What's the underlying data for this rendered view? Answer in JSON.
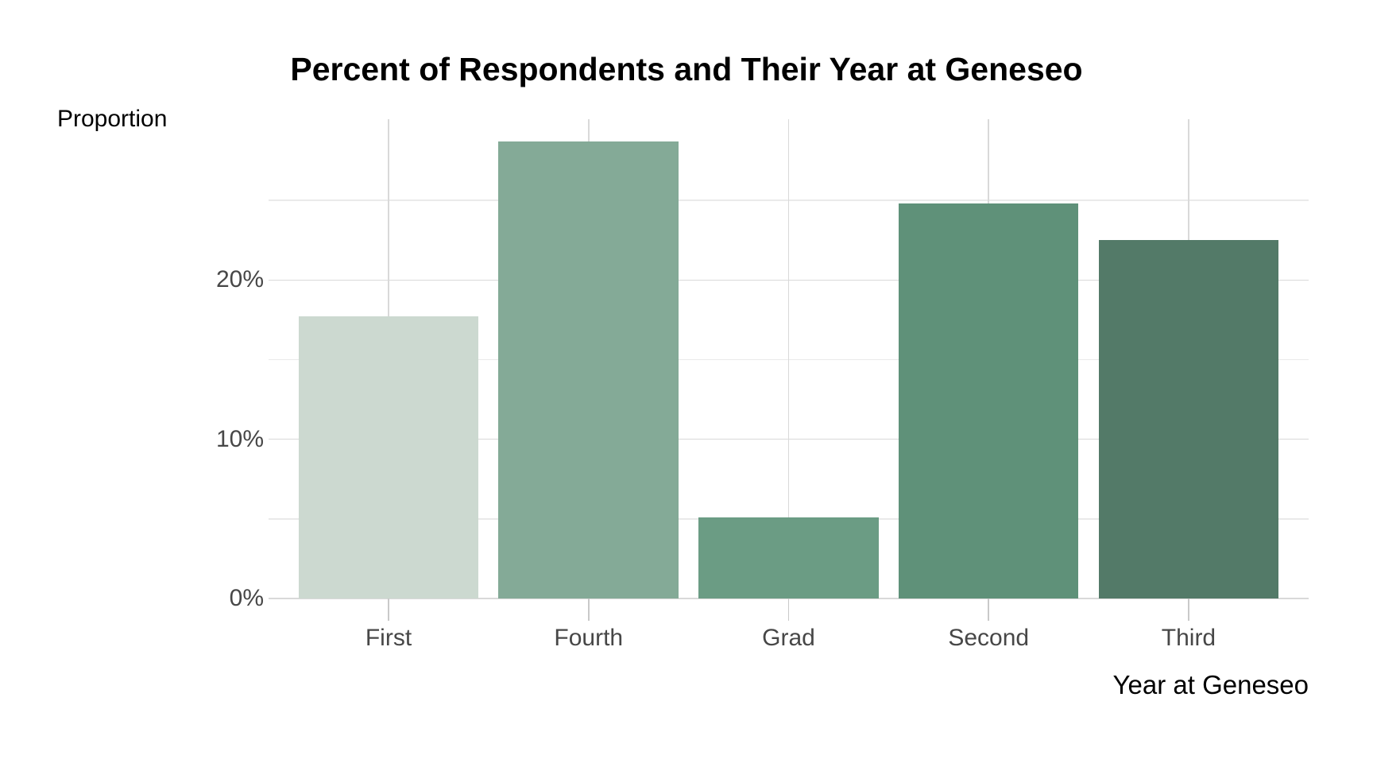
{
  "chart_data": {
    "type": "bar",
    "title": "Percent of Respondents and Their Year at Geneseo",
    "xlabel": "Year at Geneseo",
    "ylabel": "Proportion",
    "categories": [
      "First",
      "Fourth",
      "Grad",
      "Second",
      "Third"
    ],
    "values": [
      17.7,
      28.7,
      5.1,
      24.8,
      22.5
    ],
    "value_unit": "percent",
    "bar_colors": [
      "#ccd9d0",
      "#84aa97",
      "#6b9c84",
      "#5f9179",
      "#537a68"
    ],
    "y_axis": {
      "ticks": [
        {
          "value": 0,
          "label": "0%"
        },
        {
          "value": 10,
          "label": "10%"
        },
        {
          "value": 20,
          "label": "20%"
        }
      ],
      "minor_ticks": [
        5,
        15,
        25
      ],
      "range": [
        0,
        30.1
      ]
    },
    "grid": {
      "horizontal": "major+minor",
      "vertical": "major-only"
    },
    "legend": "none",
    "colors": {
      "background": "#ffffff",
      "grid_major": "#d9d9d9",
      "grid_minor": "#eaeaea",
      "axis_tick": "#c9c9c9",
      "tick_label": "#474747",
      "title": "#000000",
      "axis_title": "#000000"
    }
  }
}
